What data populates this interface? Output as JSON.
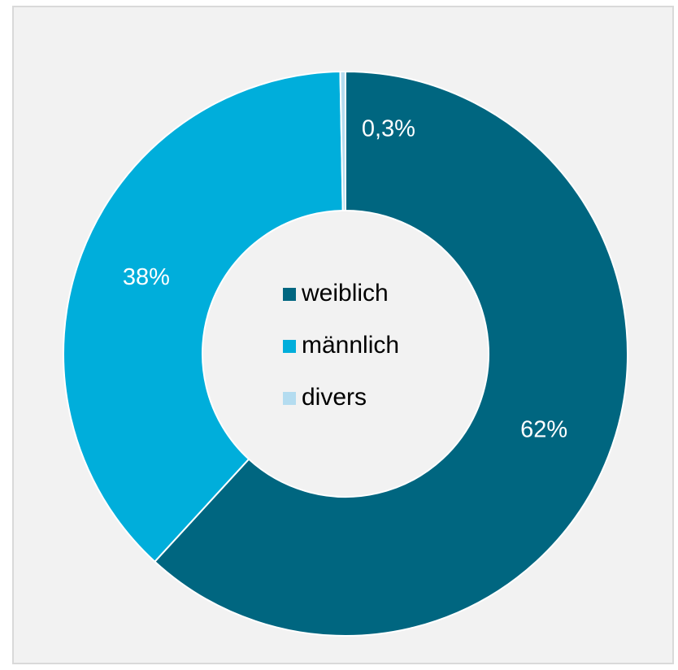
{
  "chart_data": {
    "type": "pie",
    "categories": [
      "weiblich",
      "männlich",
      "divers"
    ],
    "values": [
      62,
      38,
      0.3
    ],
    "value_labels": [
      "62%",
      "38%",
      "0,3%"
    ],
    "colors": [
      "#006680",
      "#00aedb",
      "#b4dcf0"
    ],
    "legend": "center"
  }
}
